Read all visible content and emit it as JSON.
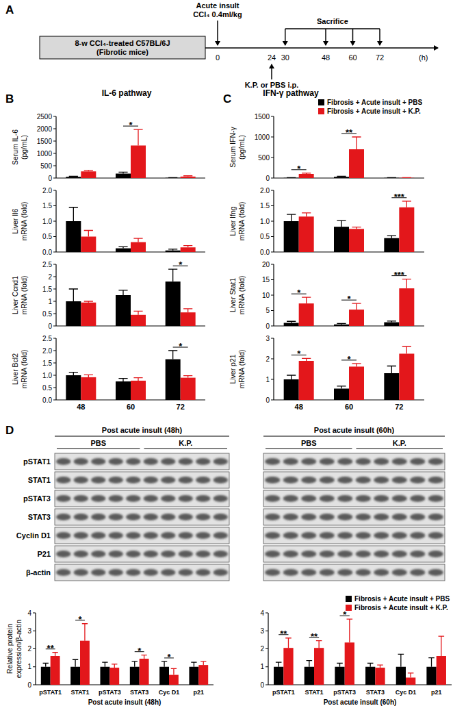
{
  "panel_labels": [
    "A",
    "B",
    "C",
    "D"
  ],
  "timeline": {
    "box_lines": [
      "8-w CCl₄-treated C57BL/6J",
      "(Fibrotic mice)"
    ],
    "insult_lines": [
      "Acute insult",
      "CCl₄ 0.4ml/kg"
    ],
    "insult_hour": 0,
    "treatment_label": "K.P. or PBS i.p.",
    "treatment_hour": 24,
    "sacrifice_label": "Sacrifice",
    "sacrifice_hours": [
      30,
      48,
      60,
      72
    ],
    "tick_hours": [
      0,
      24,
      30,
      48,
      60,
      72
    ],
    "unit_label": "(h)"
  },
  "pathway_titles": [
    "IL-6 pathway",
    "IFN-γ pathway"
  ],
  "blot": {
    "panels": [
      {
        "title": "Post acute insult (48h)",
        "groups": [
          {
            "label": "PBS",
            "lanes": 5
          },
          {
            "label": "K.P.",
            "lanes": 5
          }
        ]
      },
      {
        "title": "Post acute insult (60h)",
        "groups": [
          {
            "label": "PBS",
            "lanes": 5
          },
          {
            "label": "K.P.",
            "lanes": 5
          }
        ]
      }
    ],
    "rows": [
      "pSTAT1",
      "STAT1",
      "pSTAT3",
      "STAT3",
      "Cyclin D1",
      "P21",
      "β-actin"
    ]
  },
  "chart_data": [
    {
      "type": "bar",
      "y_label": [
        "Serum IL-6",
        "(pg/mL)"
      ],
      "categories": [
        "48",
        "60",
        "72"
      ],
      "series": [
        {
          "color": "#000000",
          "values": [
            50,
            180,
            10
          ],
          "errors": [
            20,
            60,
            5
          ]
        },
        {
          "color": "#e3171b",
          "values": [
            270,
            1320,
            60
          ],
          "errors": [
            40,
            650,
            30
          ]
        }
      ],
      "ylim": [
        0,
        2500
      ],
      "yticks": [
        0,
        500,
        1000,
        1500,
        2000,
        2500
      ],
      "tick_labels": "y",
      "significance": [
        {
          "category": "60",
          "label": "*"
        }
      ]
    },
    {
      "type": "bar",
      "y_label": [
        "Liver Il6",
        "mRNA (fold)"
      ],
      "categories": [
        "48",
        "60",
        "72"
      ],
      "series": [
        {
          "color": "#000000",
          "values": [
            1.0,
            0.12,
            0.05
          ],
          "errors": [
            0.45,
            0.05,
            0.04
          ]
        },
        {
          "color": "#e3171b",
          "values": [
            0.5,
            0.32,
            0.15
          ],
          "errors": [
            0.2,
            0.12,
            0.06
          ]
        }
      ],
      "ylim": [
        0,
        2
      ],
      "yticks": [
        {
          "value": 0,
          "label": "0.0"
        },
        {
          "value": 0.5,
          "label": "0.5"
        },
        {
          "value": 1,
          "label": "1.0"
        },
        {
          "value": 1.5,
          "label": "1.5"
        },
        {
          "value": 2,
          "label": "2.0"
        }
      ],
      "tick_labels": "y"
    },
    {
      "type": "bar",
      "y_label": [
        "Liver Ccnd1",
        "mRNA (fold)"
      ],
      "categories": [
        "48",
        "60",
        "72"
      ],
      "series": [
        {
          "color": "#000000",
          "values": [
            1.0,
            1.25,
            1.8
          ],
          "errors": [
            0.5,
            0.2,
            0.5
          ]
        },
        {
          "color": "#e3171b",
          "values": [
            0.95,
            0.45,
            0.55
          ],
          "errors": [
            0.05,
            0.15,
            0.15
          ]
        }
      ],
      "ylim": [
        0,
        2.5
      ],
      "yticks": [
        0,
        0.5,
        1,
        1.5,
        2,
        2.5
      ],
      "tick_labels": "y",
      "significance": [
        {
          "category": "72",
          "label": "*"
        }
      ]
    },
    {
      "type": "bar",
      "y_label": [
        "Liver Bcl2",
        "mRNA (fold)"
      ],
      "categories": [
        "48",
        "60",
        "72"
      ],
      "series": [
        {
          "color": "#000000",
          "values": [
            1.0,
            0.75,
            1.65
          ],
          "errors": [
            0.12,
            0.12,
            0.35
          ]
        },
        {
          "color": "#e3171b",
          "values": [
            0.92,
            0.78,
            0.9
          ],
          "errors": [
            0.1,
            0.12,
            0.08
          ]
        }
      ],
      "ylim": [
        0,
        2.5
      ],
      "yticks": [
        {
          "value": 0,
          "label": "0.0"
        },
        {
          "value": 0.5,
          "label": "0.5"
        },
        {
          "value": 1,
          "label": "1.0"
        },
        {
          "value": 1.5,
          "label": "1.5"
        },
        {
          "value": 2,
          "label": "2.0"
        },
        {
          "value": 2.5,
          "label": "2.5"
        }
      ],
      "significance": [
        {
          "category": "72",
          "label": "*"
        }
      ]
    },
    {
      "type": "bar",
      "y_label": [
        "Serum IFN-γ",
        "(pg/mL)"
      ],
      "categories": [
        "48",
        "60",
        "72"
      ],
      "series": [
        {
          "name": "Fibrosis + Acute insult + PBS",
          "color": "#000000",
          "values": [
            5,
            30,
            5
          ],
          "errors": [
            3,
            15,
            3
          ]
        },
        {
          "name": "Fibrosis + Acute insult + K.P.",
          "color": "#e3171b",
          "values": [
            100,
            700,
            5
          ],
          "errors": [
            20,
            300,
            3
          ]
        }
      ],
      "ylim": [
        0,
        1500
      ],
      "yticks": [
        0,
        500,
        1000,
        1500
      ],
      "tick_labels": "y",
      "legend": "top-right",
      "significance": [
        {
          "category": "48",
          "label": "*"
        },
        {
          "category": "60",
          "label": "**"
        }
      ]
    },
    {
      "type": "bar",
      "y_label": [
        "Liver Ifng",
        "mRNA (fold)"
      ],
      "categories": [
        "48",
        "60",
        "72"
      ],
      "series": [
        {
          "color": "#000000",
          "values": [
            1.0,
            0.82,
            0.45
          ],
          "errors": [
            0.22,
            0.2,
            0.08
          ]
        },
        {
          "color": "#e3171b",
          "values": [
            1.15,
            0.75,
            1.45
          ],
          "errors": [
            0.12,
            0.06,
            0.2
          ]
        }
      ],
      "ylim": [
        0,
        2
      ],
      "yticks": [
        {
          "value": 0,
          "label": "0.0"
        },
        {
          "value": 0.5,
          "label": "0.5"
        },
        {
          "value": 1,
          "label": "1.0"
        },
        {
          "value": 1.5,
          "label": "1.5"
        },
        {
          "value": 2,
          "label": "2.0"
        }
      ],
      "tick_labels": "y",
      "significance": [
        {
          "category": "72",
          "label": "***"
        }
      ]
    },
    {
      "type": "bar",
      "y_label": [
        "Liver Stat1",
        "mRNA (fold)"
      ],
      "categories": [
        "48",
        "60",
        "72"
      ],
      "series": [
        {
          "color": "#000000",
          "values": [
            1.0,
            0.5,
            1.2
          ],
          "errors": [
            0.5,
            0.3,
            0.4
          ]
        },
        {
          "color": "#e3171b",
          "values": [
            7.3,
            5.3,
            12.2
          ],
          "errors": [
            2,
            2,
            3
          ]
        }
      ],
      "ylim": [
        0,
        20
      ],
      "yticks": [
        0,
        5,
        10,
        15,
        20
      ],
      "tick_labels": "y",
      "significance": [
        {
          "category": "48",
          "label": "*"
        },
        {
          "category": "60",
          "label": "*"
        },
        {
          "category": "72",
          "label": "***"
        }
      ]
    },
    {
      "type": "bar",
      "y_label": [
        "Liver p21",
        "mRNA (fold)"
      ],
      "categories": [
        "48",
        "60",
        "72"
      ],
      "series": [
        {
          "color": "#000000",
          "values": [
            1.0,
            0.55,
            1.3
          ],
          "errors": [
            0.2,
            0.12,
            0.35
          ]
        },
        {
          "color": "#e3171b",
          "values": [
            1.9,
            1.62,
            2.25
          ],
          "errors": [
            0.12,
            0.15,
            0.35
          ]
        }
      ],
      "ylim": [
        0,
        3
      ],
      "yticks": [
        0,
        1,
        2,
        3
      ],
      "significance": [
        {
          "category": "48",
          "label": "*"
        },
        {
          "category": "60",
          "label": "*"
        }
      ]
    },
    {
      "type": "bar",
      "y_label": [
        "Relative protein",
        "expression/β-actin"
      ],
      "x_label": "Post acute insult (48h)",
      "categories": [
        "pSTAT1",
        "STAT1",
        "pSTAT3",
        "STAT3",
        "Cyc D1",
        "p21"
      ],
      "series": [
        {
          "color": "#000000",
          "values": [
            1,
            1,
            1,
            1,
            1,
            1
          ],
          "errors": [
            0.2,
            0.4,
            0.25,
            0.3,
            0.3,
            0.25
          ]
        },
        {
          "color": "#e3171b",
          "values": [
            1.6,
            2.45,
            0.95,
            1.45,
            0.55,
            1.1
          ],
          "errors": [
            0.2,
            0.95,
            0.2,
            0.2,
            0.35,
            0.2
          ]
        }
      ],
      "ylim": [
        0,
        4
      ],
      "yticks": [
        0,
        1,
        2,
        3,
        4
      ],
      "significance": [
        {
          "category": "pSTAT1",
          "label": "**"
        },
        {
          "category": "STAT1",
          "label": "*"
        },
        {
          "category": "STAT3",
          "label": "*"
        },
        {
          "category": "Cyc D1",
          "label": "*"
        }
      ]
    },
    {
      "type": "bar",
      "x_label": "Post acute insult (60h)",
      "categories": [
        "pSTAT1",
        "STAT1",
        "pSTAT3",
        "STAT3",
        "Cyc D1",
        "p21"
      ],
      "series": [
        {
          "name": "Fibrosis + Acute insult + PBS",
          "color": "#000000",
          "values": [
            1,
            1,
            1,
            1,
            1,
            1
          ],
          "errors": [
            0.25,
            0.35,
            0.2,
            0.2,
            0.7,
            0.5
          ]
        },
        {
          "name": "Fibrosis + Acute insult + K.P.",
          "color": "#e3171b",
          "values": [
            2.05,
            2.05,
            2.35,
            0.95,
            0.4,
            1.6
          ],
          "errors": [
            0.55,
            0.4,
            1.3,
            0.15,
            0.25,
            1.1
          ]
        }
      ],
      "ylim": [
        0,
        4
      ],
      "yticks": [
        0,
        1,
        2,
        3,
        4
      ],
      "legend": "top-right",
      "significance": [
        {
          "category": "pSTAT1",
          "label": "**"
        },
        {
          "category": "STAT1",
          "label": "**"
        },
        {
          "category": "pSTAT3",
          "label": "*"
        }
      ]
    }
  ]
}
